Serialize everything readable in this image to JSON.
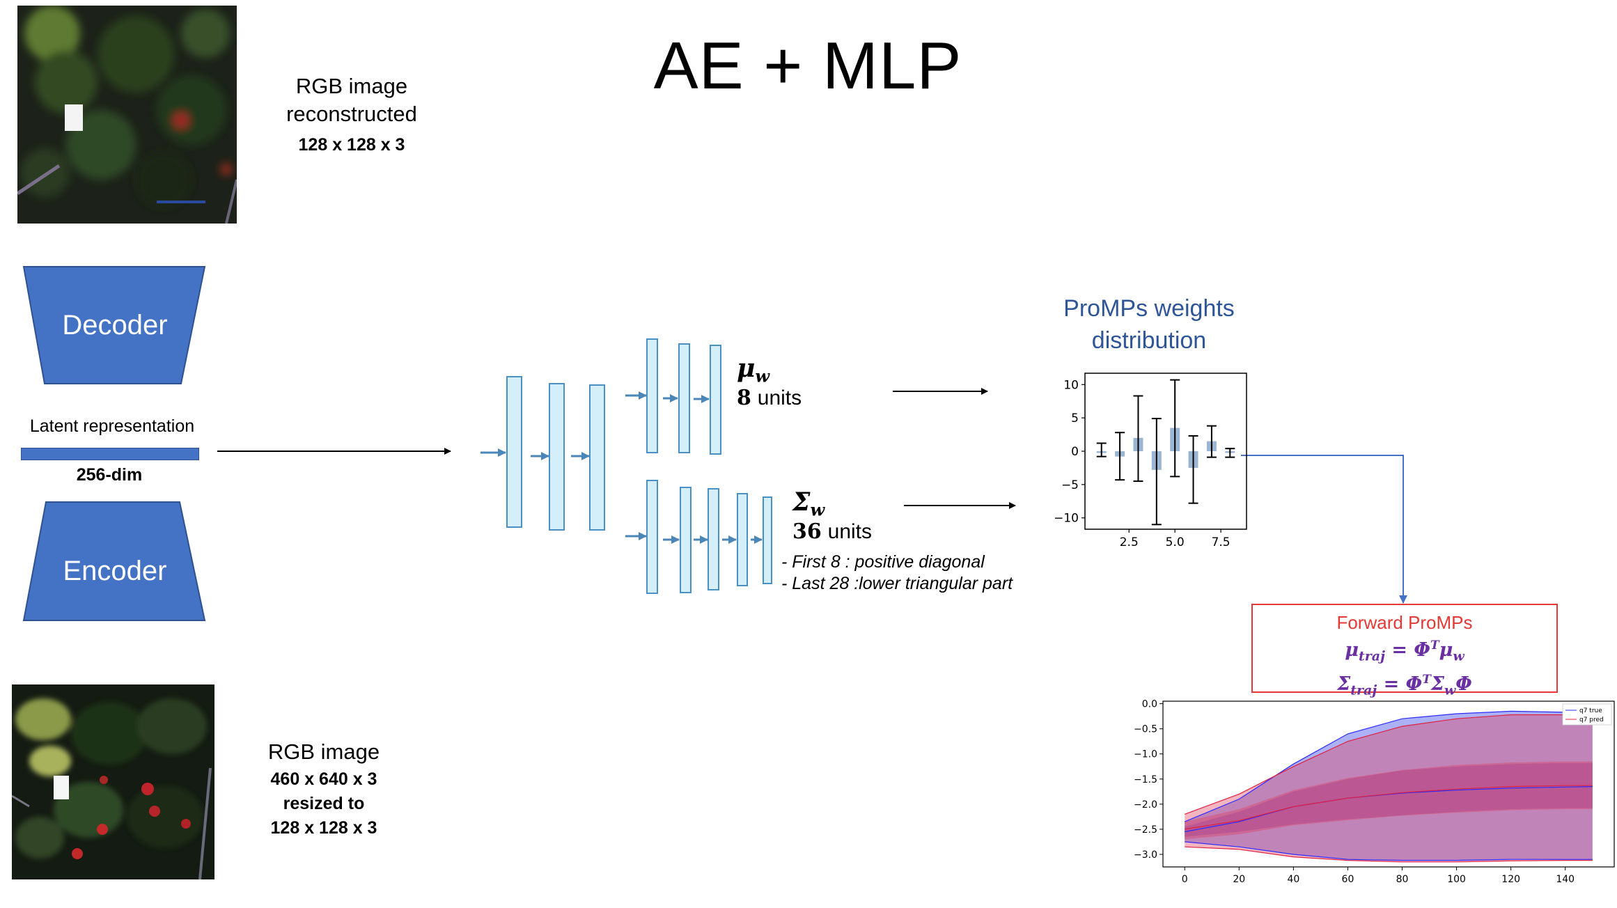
{
  "title": "AE + MLP",
  "reconstructed": {
    "line1": "RGB image",
    "line2": "reconstructed",
    "dims": "128 x 128 x 3"
  },
  "decoder_label": "Decoder",
  "encoder_label": "Encoder",
  "latent": {
    "label": "Latent representation",
    "dims": "256-dim"
  },
  "input_image": {
    "line1": "RGB image",
    "dims1": "460 x 640 x 3",
    "resized": "resized to",
    "dims2": "128 x 128 x 3"
  },
  "mu_head": {
    "symbol": "μ",
    "subscript": "w",
    "count": "8",
    "units": "units"
  },
  "sigma_head": {
    "symbol": "Σ",
    "subscript": "w",
    "count": "36",
    "units": "units",
    "note1": "- First 8 : positive diagonal",
    "note2": "- Last 28 :lower triangular part"
  },
  "promps": {
    "title_line1": "ProMPs weights",
    "title_line2": "distribution"
  },
  "forward": {
    "title": "Forward ProMPs",
    "eq1": "μ_traj = Φ^T μ_w",
    "eq2": "Σ_traj = Φ^T Σ_w Φ"
  },
  "colors": {
    "trapezoid": "#4472C4",
    "latent_bar": "#4472C4",
    "layer_fill": "#D4EEFA",
    "layer_stroke": "#4A90C2",
    "promps_title": "#2E5597",
    "forward_title": "#E53935",
    "equations": "#6A2FA3",
    "bar_fill": "#9BB6D2"
  },
  "chart_data": [
    {
      "type": "bar",
      "title": "",
      "x": [
        1,
        2,
        3,
        4,
        5,
        6,
        7,
        8
      ],
      "values": [
        0,
        -0.8,
        2,
        -2.8,
        3.5,
        -2.5,
        1.5,
        0
      ],
      "error_low": [
        -0.8,
        -4.3,
        -4.5,
        -11,
        -3.8,
        -7.8,
        -0.9,
        -0.9
      ],
      "error_high": [
        1.2,
        2.8,
        8.3,
        4.9,
        10.7,
        2.3,
        3.8,
        0.4
      ],
      "xticks": [
        "2.5",
        "5.0",
        "7.5"
      ],
      "xtick_values": [
        2.5,
        5.0,
        7.5
      ],
      "yticks": [
        "10",
        "5",
        "0",
        "−5",
        "−10"
      ],
      "ytick_values": [
        10,
        5,
        0,
        -5,
        -10
      ],
      "xlim": [
        0.1,
        8.9
      ],
      "ylim": [
        -11.7,
        11.7
      ]
    },
    {
      "type": "area",
      "title": "",
      "x": [
        0,
        20,
        40,
        60,
        80,
        100,
        120,
        140,
        150
      ],
      "series": [
        {
          "name": "q7 true",
          "mean": [
            -2.55,
            -2.35,
            -2.05,
            -1.88,
            -1.78,
            -1.72,
            -1.68,
            -1.66,
            -1.65
          ],
          "lower_outer": [
            -2.75,
            -2.85,
            -3.0,
            -3.1,
            -3.12,
            -3.12,
            -3.1,
            -3.1,
            -3.1
          ],
          "upper_outer": [
            -2.35,
            -1.9,
            -1.2,
            -0.6,
            -0.3,
            -0.2,
            -0.15,
            -0.17,
            -0.18
          ],
          "lower_inner": [
            -2.65,
            -2.55,
            -2.4,
            -2.3,
            -2.22,
            -2.15,
            -2.1,
            -2.08,
            -2.08
          ],
          "upper_inner": [
            -2.45,
            -2.15,
            -1.75,
            -1.5,
            -1.33,
            -1.25,
            -1.2,
            -1.18,
            -1.18
          ]
        },
        {
          "name": "q7 pred",
          "mean": [
            -2.5,
            -2.33,
            -2.05,
            -1.88,
            -1.77,
            -1.7,
            -1.65,
            -1.63,
            -1.63
          ],
          "lower_outer": [
            -2.85,
            -2.9,
            -3.05,
            -3.12,
            -3.15,
            -3.15,
            -3.13,
            -3.12,
            -3.12
          ],
          "upper_outer": [
            -2.2,
            -1.8,
            -1.25,
            -0.75,
            -0.45,
            -0.3,
            -0.22,
            -0.22,
            -0.22
          ],
          "lower_inner": [
            -2.7,
            -2.6,
            -2.42,
            -2.32,
            -2.23,
            -2.17,
            -2.12,
            -2.1,
            -2.1
          ],
          "upper_inner": [
            -2.35,
            -2.1,
            -1.72,
            -1.48,
            -1.32,
            -1.22,
            -1.17,
            -1.15,
            -1.15
          ]
        }
      ],
      "xticks": [
        "0",
        "20",
        "40",
        "60",
        "80",
        "100",
        "120",
        "140"
      ],
      "xtick_values": [
        0,
        20,
        40,
        60,
        80,
        100,
        120,
        140
      ],
      "yticks": [
        "0.0",
        "−0.5",
        "−1.0",
        "−1.5",
        "−2.0",
        "−2.5",
        "−3.0"
      ],
      "ytick_values": [
        0,
        -0.5,
        -1.0,
        -1.5,
        -2.0,
        -2.5,
        -3.0
      ],
      "xlim": [
        -8,
        158
      ],
      "ylim": [
        -3.25,
        0.05
      ],
      "legend": "top-right"
    }
  ]
}
